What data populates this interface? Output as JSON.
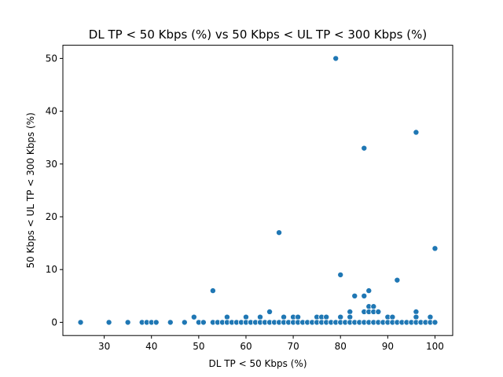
{
  "chart_data": {
    "type": "scatter",
    "title": "DL TP < 50 Kbps (%) vs 50 Kbps < UL TP < 300 Kbps (%)",
    "xlabel": "DL TP < 50 Kbps (%)",
    "ylabel": "50 Kbps < UL TP < 300 Kbps (%)",
    "xlim": [
      21.25,
      103.75
    ],
    "ylim": [
      -2.5,
      52.5
    ],
    "xticks": [
      30,
      40,
      50,
      60,
      70,
      80,
      90,
      100
    ],
    "yticks": [
      0,
      10,
      20,
      30,
      40,
      50
    ],
    "grid": false,
    "point_color": "#1f77b4",
    "points": [
      {
        "x": 25,
        "y": 0
      },
      {
        "x": 31,
        "y": 0
      },
      {
        "x": 35,
        "y": 0
      },
      {
        "x": 38,
        "y": 0
      },
      {
        "x": 39,
        "y": 0
      },
      {
        "x": 40,
        "y": 0
      },
      {
        "x": 41,
        "y": 0
      },
      {
        "x": 44,
        "y": 0
      },
      {
        "x": 47,
        "y": 0
      },
      {
        "x": 49,
        "y": 1
      },
      {
        "x": 50,
        "y": 0
      },
      {
        "x": 51,
        "y": 0
      },
      {
        "x": 53,
        "y": 6
      },
      {
        "x": 53,
        "y": 0
      },
      {
        "x": 54,
        "y": 0
      },
      {
        "x": 55,
        "y": 0
      },
      {
        "x": 56,
        "y": 1
      },
      {
        "x": 56,
        "y": 0
      },
      {
        "x": 57,
        "y": 0
      },
      {
        "x": 58,
        "y": 0
      },
      {
        "x": 59,
        "y": 0
      },
      {
        "x": 60,
        "y": 1
      },
      {
        "x": 60,
        "y": 0
      },
      {
        "x": 61,
        "y": 0
      },
      {
        "x": 62,
        "y": 0
      },
      {
        "x": 63,
        "y": 1
      },
      {
        "x": 63,
        "y": 0
      },
      {
        "x": 64,
        "y": 0
      },
      {
        "x": 65,
        "y": 2
      },
      {
        "x": 65,
        "y": 0
      },
      {
        "x": 66,
        "y": 0
      },
      {
        "x": 67,
        "y": 17
      },
      {
        "x": 67,
        "y": 0
      },
      {
        "x": 68,
        "y": 1
      },
      {
        "x": 68,
        "y": 0
      },
      {
        "x": 69,
        "y": 0
      },
      {
        "x": 70,
        "y": 1
      },
      {
        "x": 70,
        "y": 0
      },
      {
        "x": 71,
        "y": 1
      },
      {
        "x": 71,
        "y": 0
      },
      {
        "x": 72,
        "y": 0
      },
      {
        "x": 73,
        "y": 0
      },
      {
        "x": 74,
        "y": 0
      },
      {
        "x": 75,
        "y": 1
      },
      {
        "x": 75,
        "y": 0
      },
      {
        "x": 76,
        "y": 1
      },
      {
        "x": 76,
        "y": 0
      },
      {
        "x": 77,
        "y": 1
      },
      {
        "x": 77,
        "y": 0
      },
      {
        "x": 78,
        "y": 0
      },
      {
        "x": 79,
        "y": 50
      },
      {
        "x": 79,
        "y": 0
      },
      {
        "x": 80,
        "y": 9
      },
      {
        "x": 80,
        "y": 1
      },
      {
        "x": 80,
        "y": 0
      },
      {
        "x": 81,
        "y": 0
      },
      {
        "x": 82,
        "y": 2
      },
      {
        "x": 82,
        "y": 1
      },
      {
        "x": 82,
        "y": 0
      },
      {
        "x": 83,
        "y": 5
      },
      {
        "x": 83,
        "y": 0
      },
      {
        "x": 84,
        "y": 0
      },
      {
        "x": 85,
        "y": 33
      },
      {
        "x": 85,
        "y": 5
      },
      {
        "x": 85,
        "y": 2
      },
      {
        "x": 85,
        "y": 0
      },
      {
        "x": 86,
        "y": 6
      },
      {
        "x": 86,
        "y": 3
      },
      {
        "x": 86,
        "y": 2
      },
      {
        "x": 86,
        "y": 0
      },
      {
        "x": 87,
        "y": 3
      },
      {
        "x": 87,
        "y": 2
      },
      {
        "x": 87,
        "y": 0
      },
      {
        "x": 88,
        "y": 2
      },
      {
        "x": 88,
        "y": 0
      },
      {
        "x": 89,
        "y": 0
      },
      {
        "x": 90,
        "y": 1
      },
      {
        "x": 90,
        "y": 0
      },
      {
        "x": 91,
        "y": 1
      },
      {
        "x": 91,
        "y": 0
      },
      {
        "x": 92,
        "y": 8
      },
      {
        "x": 92,
        "y": 0
      },
      {
        "x": 93,
        "y": 0
      },
      {
        "x": 94,
        "y": 0
      },
      {
        "x": 95,
        "y": 0
      },
      {
        "x": 96,
        "y": 36
      },
      {
        "x": 96,
        "y": 2
      },
      {
        "x": 96,
        "y": 1
      },
      {
        "x": 96,
        "y": 0
      },
      {
        "x": 97,
        "y": 0
      },
      {
        "x": 98,
        "y": 0
      },
      {
        "x": 99,
        "y": 1
      },
      {
        "x": 99,
        "y": 0
      },
      {
        "x": 100,
        "y": 14
      },
      {
        "x": 100,
        "y": 0
      }
    ]
  }
}
